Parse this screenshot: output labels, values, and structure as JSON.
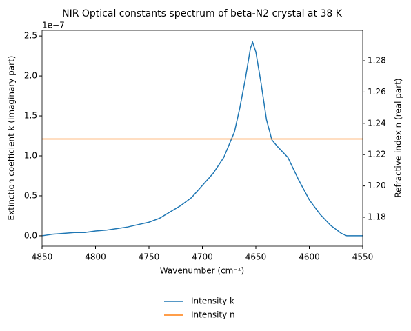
{
  "chart_data": {
    "type": "line",
    "title": "NIR Optical constants spectrum of beta-N2 crystal at 38 K",
    "x_label": "Wavenumber (cm⁻¹)",
    "y_label": "Extinction coefficient k (imaginary part)",
    "y2_label": "Refractive index n (real part)",
    "y_offset_label": "1e−7",
    "xlim": [
      4850,
      4550
    ],
    "xticks": [
      4850,
      4800,
      4750,
      4700,
      4650,
      4600,
      4550
    ],
    "ylim": [
      -0.13,
      2.57
    ],
    "yticks": [
      {
        "value": 0,
        "label": "0.0"
      },
      0.5,
      {
        "value": 1,
        "label": "1.0"
      },
      1.5,
      {
        "value": 2,
        "label": "2.0"
      },
      2.5
    ],
    "y2lim": [
      1.1615,
      1.2994
    ],
    "y2ticks": [
      1.18,
      {
        "value": 1.2,
        "label": "1.20"
      },
      1.22,
      1.24,
      1.26,
      1.28
    ],
    "legend": "bottom",
    "series": [
      {
        "name": "Intensity k",
        "color": "#1f77b4",
        "x": [
          4850,
          4840,
          4830,
          4820,
          4810,
          4800,
          4790,
          4780,
          4770,
          4760,
          4750,
          4740,
          4730,
          4720,
          4710,
          4700,
          4690,
          4680,
          4670,
          4665,
          4660,
          4655,
          4653,
          4650,
          4645,
          4640,
          4635,
          4630,
          4620,
          4610,
          4600,
          4590,
          4580,
          4570,
          4565,
          4550
        ],
        "values": [
          0.0,
          0.02,
          0.03,
          0.04,
          0.04,
          0.06,
          0.07,
          0.09,
          0.11,
          0.14,
          0.17,
          0.22,
          0.3,
          0.38,
          0.48,
          0.63,
          0.78,
          0.98,
          1.3,
          1.6,
          1.95,
          2.35,
          2.42,
          2.3,
          1.9,
          1.45,
          1.2,
          1.12,
          0.98,
          0.7,
          0.45,
          0.27,
          0.13,
          0.03,
          0.0,
          0.0
        ]
      },
      {
        "name": "Intensity n",
        "color": "#ff7f0e",
        "axis": "y2",
        "x": [
          4850,
          4550
        ],
        "values": [
          1.23,
          1.23
        ]
      }
    ]
  }
}
